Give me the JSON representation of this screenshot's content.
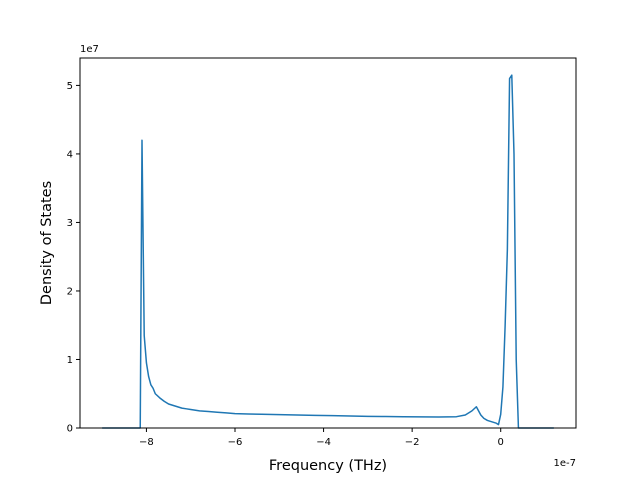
{
  "chart_data": {
    "type": "line",
    "title": "",
    "xlabel": "Frequency (THz)",
    "ylabel": "Density of States",
    "x_offset_text": "1e-7",
    "y_offset_text": "1e7",
    "xlim": [
      -9.5e-07,
      1.7e-07
    ],
    "ylim": [
      0,
      54000000.0
    ],
    "xticks": [
      -8e-07,
      -6e-07,
      -4e-07,
      -2e-07,
      0
    ],
    "xtick_labels": [
      "−8",
      "−6",
      "−4",
      "−2",
      "0"
    ],
    "yticks": [
      0,
      10000000.0,
      20000000.0,
      30000000.0,
      40000000.0,
      50000000.0
    ],
    "ytick_labels": [
      "0",
      "1",
      "2",
      "3",
      "4",
      "5"
    ],
    "grid": false,
    "color": "#1f77b4",
    "series": [
      {
        "x": [
          -9e-07,
          -8.2e-07,
          -8.14e-07,
          -8.1e-07,
          -8.05e-07,
          -8e-07,
          -7.95e-07,
          -7.9e-07,
          -7.85e-07,
          -7.8e-07,
          -7.7e-07,
          -7.6e-07,
          -7.5e-07,
          -7.4e-07,
          -7.3e-07,
          -7.2e-07,
          -7.1e-07,
          -7e-07,
          -6.8e-07,
          -6.6e-07,
          -6.4e-07,
          -6.2e-07,
          -6e-07,
          -5.7e-07,
          -5.4e-07,
          -5e-07,
          -4.6e-07,
          -4.2e-07,
          -3.8e-07,
          -3.4e-07,
          -3e-07,
          -2.6e-07,
          -2.2e-07,
          -1.8e-07,
          -1.4e-07,
          -1e-07,
          -8e-08,
          -6.5e-08,
          -5.5e-08,
          -5e-08,
          -4.5e-08,
          -3.8e-08,
          -3e-08,
          -2e-08,
          -1e-08,
          -5e-09,
          0.0,
          5e-09,
          1e-08,
          1.5e-08,
          2e-08,
          2.5e-08,
          3e-08,
          3.5e-08,
          4e-08,
          5e-08,
          1.2e-07
        ],
        "y": [
          0,
          0,
          0,
          42000000.0,
          13500000.0,
          9500000.0,
          7500000.0,
          6300000.0,
          5800000.0,
          5000000.0,
          4400000.0,
          3900000.0,
          3500000.0,
          3300000.0,
          3100000.0,
          2900000.0,
          2800000.0,
          2700000.0,
          2500000.0,
          2400000.0,
          2300000.0,
          2200000.0,
          2100000.0,
          2050000.0,
          2000000.0,
          1950000.0,
          1900000.0,
          1850000.0,
          1800000.0,
          1750000.0,
          1700000.0,
          1680000.0,
          1650000.0,
          1620000.0,
          1600000.0,
          1650000.0,
          1900000.0,
          2500000.0,
          3100000.0,
          2500000.0,
          1900000.0,
          1400000.0,
          1100000.0,
          900000.0,
          700000.0,
          500000.0,
          2000000.0,
          6000000.0,
          15000000.0,
          26000000.0,
          51000000.0,
          51500000.0,
          40000000.0,
          10000000.0,
          0,
          0,
          0
        ]
      }
    ]
  }
}
